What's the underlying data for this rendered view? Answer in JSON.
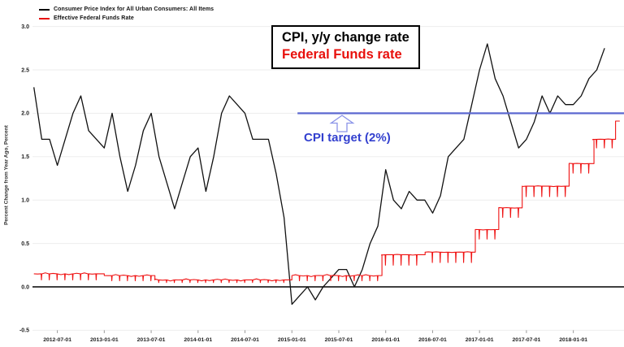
{
  "legend": {
    "items": [
      {
        "label": "Consumer Price Index for All Urban Consumers: All Items",
        "color": "#000000"
      },
      {
        "label": "Effective Federal Funds Rate",
        "color": "#e8100c"
      }
    ]
  },
  "annotations": {
    "box_line1": "CPI, y/y change rate",
    "box_line2": "Federal Funds rate",
    "target_label": "CPI target (2%)"
  },
  "y_axis": {
    "title": "Percent Change from Year Ago, Percent",
    "ticks": [
      {
        "v": -0.5,
        "label": "-0.5"
      },
      {
        "v": 0.0,
        "label": "0.0"
      },
      {
        "v": 0.5,
        "label": "0.5"
      },
      {
        "v": 1.0,
        "label": "1.0"
      },
      {
        "v": 1.5,
        "label": "1.5"
      },
      {
        "v": 2.0,
        "label": "2.0"
      },
      {
        "v": 2.5,
        "label": "2.5"
      },
      {
        "v": 3.0,
        "label": "3.0"
      }
    ]
  },
  "x_axis": {
    "ticks": [
      {
        "t": 2012.5,
        "label": "2012-07-01"
      },
      {
        "t": 2013.0,
        "label": "2013-01-01"
      },
      {
        "t": 2013.5,
        "label": "2013-07-01"
      },
      {
        "t": 2014.0,
        "label": "2014-01-01"
      },
      {
        "t": 2014.5,
        "label": "2014-07-01"
      },
      {
        "t": 2015.0,
        "label": "2015-01-01"
      },
      {
        "t": 2015.5,
        "label": "2015-07-01"
      },
      {
        "t": 2016.0,
        "label": "2016-01-01"
      },
      {
        "t": 2016.5,
        "label": "2016-07-01"
      },
      {
        "t": 2017.0,
        "label": "2017-01-01"
      },
      {
        "t": 2017.5,
        "label": "2017-07-01"
      },
      {
        "t": 2018.0,
        "label": "2018-01-01"
      }
    ]
  },
  "chart_data": {
    "type": "line",
    "x_domain": [
      2012.235,
      2018.54
    ],
    "y_domain": [
      -0.5,
      3.0
    ],
    "grid": "horizontal-only",
    "zero_line": 0.0,
    "colors": {
      "cpi": "#111111",
      "fed_funds": "#ef1212",
      "target": "#5c68d1",
      "gridline": "#ededed",
      "zero": "#000000",
      "tick_text": "#222222"
    },
    "series": [
      {
        "name": "Consumer Price Index for All Urban Consumers: All Items",
        "kind": "monthly",
        "start_month": "2012-04",
        "start_t": 2012.25,
        "values": [
          2.3,
          1.7,
          1.7,
          1.4,
          1.7,
          2.0,
          2.2,
          1.8,
          1.7,
          1.6,
          2.0,
          1.5,
          1.1,
          1.4,
          1.8,
          2.0,
          1.5,
          1.2,
          0.9,
          1.2,
          1.5,
          1.6,
          1.1,
          1.5,
          2.0,
          2.2,
          2.1,
          2.0,
          1.7,
          1.7,
          1.7,
          1.3,
          0.8,
          -0.2,
          -0.1,
          0.0,
          -0.15,
          0.0,
          0.1,
          0.2,
          0.2,
          0.0,
          0.2,
          0.5,
          0.7,
          1.35,
          1.0,
          0.9,
          1.1,
          1.0,
          1.0,
          0.85,
          1.05,
          1.5,
          1.6,
          1.7,
          2.1,
          2.5,
          2.8,
          2.4,
          2.2,
          1.9,
          1.6,
          1.7,
          1.9,
          2.2,
          2.0,
          2.2,
          2.1,
          2.1,
          2.2,
          2.4,
          2.5,
          2.75
        ]
      },
      {
        "name": "Effective Federal Funds Rate",
        "kind": "daily-steps",
        "steps": [
          {
            "start": 2012.25,
            "end": 2013.0,
            "level": 0.15,
            "dip": 0.08
          },
          {
            "start": 2013.0,
            "end": 2013.54,
            "level": 0.13,
            "dip": 0.07
          },
          {
            "start": 2013.54,
            "end": 2015.0,
            "level": 0.08,
            "dip": 0.05
          },
          {
            "start": 2015.0,
            "end": 2015.96,
            "level": 0.13,
            "dip": 0.07
          },
          {
            "start": 2015.96,
            "end": 2016.42,
            "level": 0.37,
            "dip": 0.25
          },
          {
            "start": 2016.42,
            "end": 2016.955,
            "level": 0.4,
            "dip": 0.28
          },
          {
            "start": 2016.955,
            "end": 2017.205,
            "level": 0.66,
            "dip": 0.55
          },
          {
            "start": 2017.205,
            "end": 2017.455,
            "level": 0.91,
            "dip": 0.8
          },
          {
            "start": 2017.455,
            "end": 2017.955,
            "level": 1.16,
            "dip": 1.04
          },
          {
            "start": 2017.955,
            "end": 2018.22,
            "level": 1.42,
            "dip": 1.31
          },
          {
            "start": 2018.22,
            "end": 2018.45,
            "level": 1.7,
            "dip": 1.6
          },
          {
            "start": 2018.45,
            "end": 2018.495,
            "level": 1.91,
            "dip": null
          }
        ],
        "noise_amp_low_rate": 0.012
      }
    ],
    "target_line": {
      "value": 2.0,
      "x_start": 2015.06,
      "x_end": 2018.54
    }
  }
}
